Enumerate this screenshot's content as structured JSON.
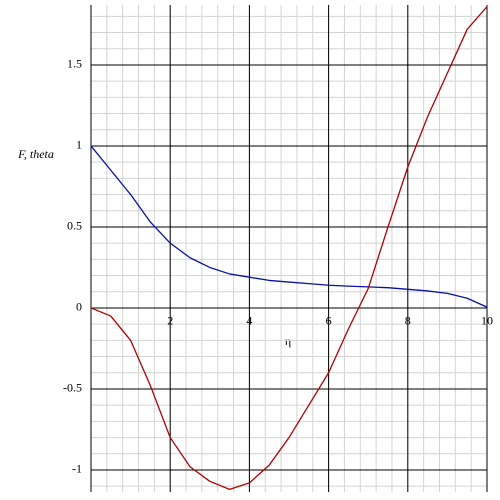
{
  "chart_data": {
    "type": "line",
    "xlabel": "η",
    "ylabel": "F, theta",
    "xlim": [
      0,
      10
    ],
    "ylim": [
      -1.136,
      1.87
    ],
    "xticks": [
      2,
      4,
      6,
      8,
      10
    ],
    "yticks": [
      -1,
      -0.5,
      0,
      0.5,
      1,
      1.5
    ],
    "grid": true,
    "x": [
      0,
      0.5,
      1,
      1.5,
      2,
      2.5,
      3,
      3.5,
      4,
      4.5,
      5,
      5.5,
      6,
      6.5,
      7,
      7.5,
      8,
      8.5,
      9,
      9.5,
      10
    ],
    "series": [
      {
        "name": "theta",
        "color": "#0a10a8",
        "values": [
          1,
          0.85,
          0.7,
          0.53,
          0.4,
          0.31,
          0.25,
          0.21,
          0.19,
          0.17,
          0.16,
          0.15,
          0.14,
          0.135,
          0.13,
          0.125,
          0.115,
          0.105,
          0.09,
          0.06,
          0.005
        ]
      },
      {
        "name": "F",
        "color": "#b00000",
        "values": [
          0,
          -0.05,
          -0.2,
          -0.48,
          -0.8,
          -0.98,
          -1.07,
          -1.12,
          -1.08,
          -0.97,
          -0.8,
          -0.6,
          -0.4,
          -0.13,
          0.12,
          0.5,
          0.87,
          1.18,
          1.45,
          1.72,
          1.86
        ]
      }
    ]
  }
}
